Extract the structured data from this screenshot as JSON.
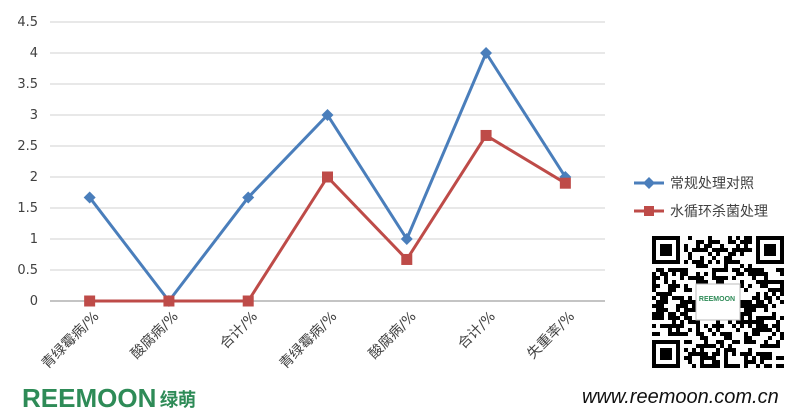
{
  "chart_data": {
    "type": "line",
    "categories": [
      "青绿霉病/%",
      "酸腐病/%",
      "合计/%",
      "青绿霉病/%",
      "酸腐病/%",
      "合计/%",
      "失重率/%"
    ],
    "series": [
      {
        "name": "常规处理对照",
        "values": [
          1.67,
          0,
          1.67,
          3.0,
          1.0,
          4.0,
          2.0
        ],
        "color": "#4a7ebb",
        "marker": "diamond"
      },
      {
        "name": "水循环杀菌处理",
        "values": [
          0,
          0,
          0,
          2.0,
          0.67,
          2.67,
          1.9
        ],
        "color": "#be4b48",
        "marker": "square"
      }
    ],
    "ylim": [
      0,
      4.5
    ],
    "yticks": [
      "0",
      "0.5",
      "1",
      "1.5",
      "2",
      "2.5",
      "3",
      "3.5",
      "4",
      "4.5"
    ],
    "grid": true,
    "legend_position": "right"
  },
  "branding": {
    "logo_text": "REEMOON",
    "logo_cn": "绿萌",
    "url": "www.reemoon.com.cn",
    "qr_label": "REEMOON",
    "colors": {
      "green": "#2e8b57",
      "blue": "#1f5fa8"
    }
  },
  "icons": {
    "qr": "qr-code-icon"
  }
}
